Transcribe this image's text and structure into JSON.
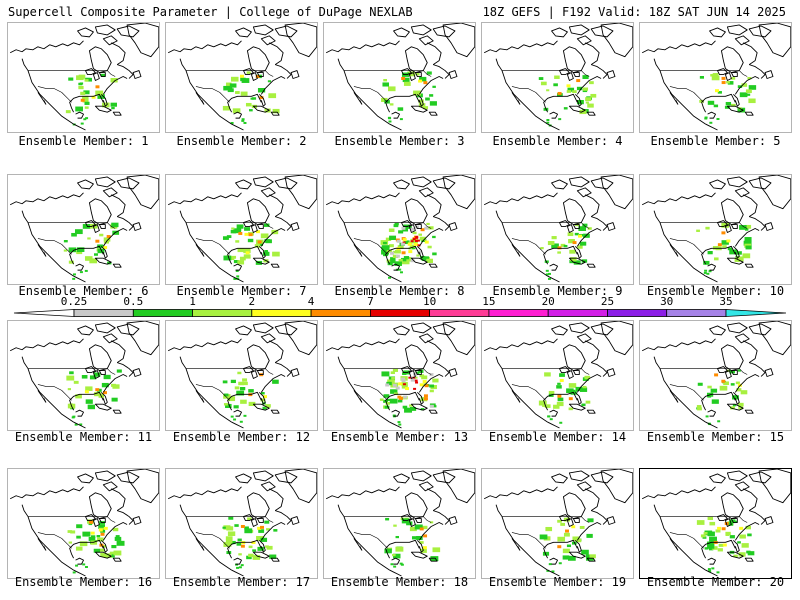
{
  "header": {
    "title_left": "Supercell Composite Parameter | College of DuPage NEXLAB",
    "title_right": "18Z GEFS | F192 Valid: 18Z SAT JUN 14 2025"
  },
  "panels": [
    {
      "label": "Ensemble Member: 1",
      "intensity": 1
    },
    {
      "label": "Ensemble Member: 2",
      "intensity": 1
    },
    {
      "label": "Ensemble Member: 3",
      "intensity": 1
    },
    {
      "label": "Ensemble Member: 4",
      "intensity": 1
    },
    {
      "label": "Ensemble Member: 5",
      "intensity": 1
    },
    {
      "label": "Ensemble Member: 6",
      "intensity": 1
    },
    {
      "label": "Ensemble Member: 7",
      "intensity": 2
    },
    {
      "label": "Ensemble Member: 8",
      "intensity": 4
    },
    {
      "label": "Ensemble Member: 9",
      "intensity": 1
    },
    {
      "label": "Ensemble Member: 10",
      "intensity": 1
    },
    {
      "label": "Ensemble Member: 11",
      "intensity": 1
    },
    {
      "label": "Ensemble Member: 12",
      "intensity": 1
    },
    {
      "label": "Ensemble Member: 13",
      "intensity": 3
    },
    {
      "label": "Ensemble Member: 14",
      "intensity": 1
    },
    {
      "label": "Ensemble Member: 15",
      "intensity": 1
    },
    {
      "label": "Ensemble Member: 16",
      "intensity": 2
    },
    {
      "label": "Ensemble Member: 17",
      "intensity": 2
    },
    {
      "label": "Ensemble Member: 18",
      "intensity": 1
    },
    {
      "label": "Ensemble Member: 19",
      "intensity": 1
    },
    {
      "label": "Ensemble Member: 20",
      "intensity": 2,
      "selected": true
    }
  ],
  "colorbar": {
    "bins": [
      {
        "label": "0.25",
        "color": "#ffffff"
      },
      {
        "label": "0.5",
        "color": "#c8c8c8"
      },
      {
        "label": "1",
        "color": "#22cc22"
      },
      {
        "label": "2",
        "color": "#a8f040"
      },
      {
        "label": "4",
        "color": "#ffff20"
      },
      {
        "label": "7",
        "color": "#ff8c00"
      },
      {
        "label": "10",
        "color": "#e60000"
      },
      {
        "label": "15",
        "color": "#ff3c96"
      },
      {
        "label": "20",
        "color": "#ff1ed2"
      },
      {
        "label": "25",
        "color": "#d21ee6"
      },
      {
        "label": "30",
        "color": "#8c1ee6"
      },
      {
        "label": "35",
        "color": "#a582e6"
      },
      {
        "label": "",
        "color": "#32e6e6"
      }
    ]
  }
}
